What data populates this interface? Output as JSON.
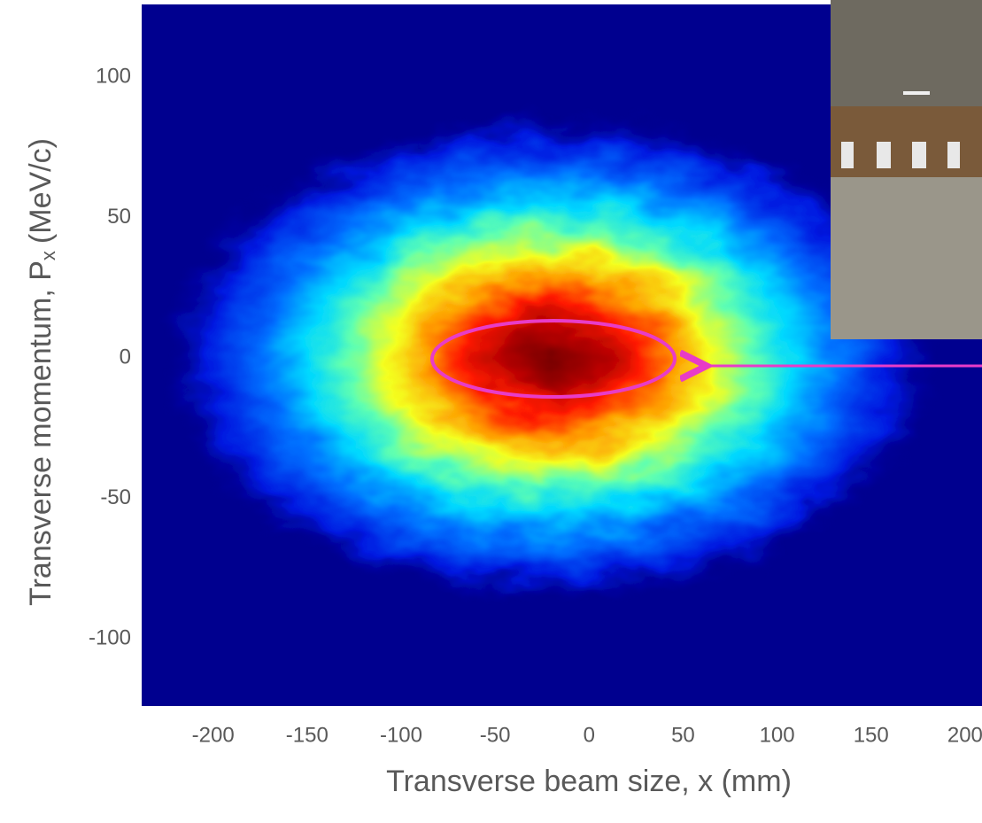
{
  "chart_data": {
    "type": "heatmap",
    "xlabel": "Transverse beam size, x (mm)",
    "ylabel": {
      "text": "Transverse momentum, P",
      "subscript": "x",
      "suffix": "(MeV/c)"
    },
    "xlim": [
      -238,
      209
    ],
    "ylim": [
      -124,
      126
    ],
    "xticks": [
      -200,
      -150,
      -100,
      -50,
      0,
      50,
      100,
      150,
      200
    ],
    "yticks": [
      -100,
      -50,
      0,
      50,
      100
    ]
  }
}
